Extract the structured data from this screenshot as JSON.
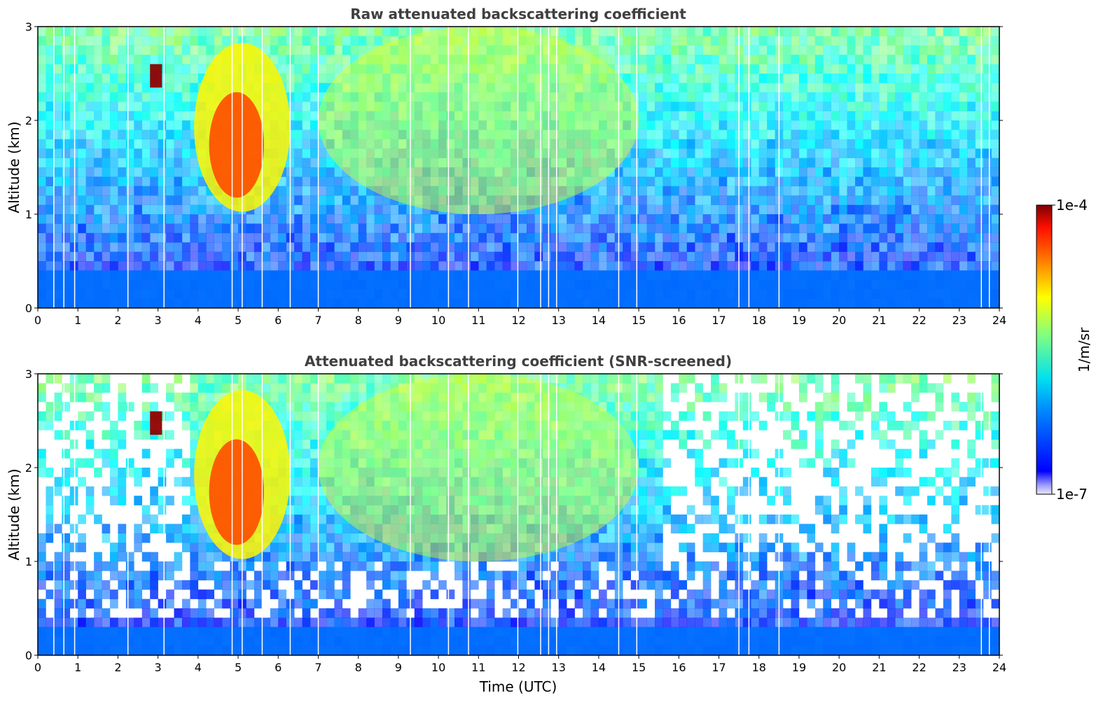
{
  "chart_data": [
    {
      "type": "heatmap",
      "title": "Raw attenuated backscattering coefficient",
      "xlabel": "",
      "ylabel": "Altitude (km)",
      "xlim": [
        0,
        24
      ],
      "ylim": [
        0,
        3
      ],
      "xticks": [
        0,
        1,
        2,
        3,
        4,
        5,
        6,
        7,
        8,
        9,
        10,
        11,
        12,
        13,
        14,
        15,
        16,
        17,
        18,
        19,
        20,
        21,
        22,
        23,
        24
      ],
      "yticks": [
        0,
        1,
        2,
        3
      ],
      "gaps_hours": [
        0.4,
        0.65,
        0.92,
        2.25,
        3.15,
        4.85,
        5.1,
        5.6,
        6.3,
        7.0,
        9.3,
        10.25,
        10.75,
        11.98,
        12.55,
        12.75,
        12.95,
        14.5,
        14.95,
        17.5,
        17.75,
        18.5,
        23.55,
        23.75
      ],
      "features": [
        {
          "desc": "surface layer",
          "t_range": [
            0,
            24
          ],
          "alt_range": [
            0,
            0.4
          ],
          "log10_value": -6.3
        },
        {
          "desc": "cloud band",
          "t_range": [
            3.9,
            6.3
          ],
          "alt_range": [
            1.1,
            2.9
          ],
          "log10_value": -4.6
        },
        {
          "desc": "cloud patch",
          "t_range": [
            2.8,
            3.1
          ],
          "alt_range": [
            2.35,
            2.6
          ],
          "log10_value": -4.05
        },
        {
          "desc": "enhanced layer",
          "t_range": [
            7,
            15
          ],
          "alt_range": [
            1.0,
            3.0
          ],
          "log10_value": -5.2
        }
      ]
    },
    {
      "type": "heatmap",
      "title": "Attenuated backscattering coefficient (SNR-screened)",
      "xlabel": "Time (UTC)",
      "ylabel": "Altitude (km)",
      "xlim": [
        0,
        24
      ],
      "ylim": [
        0,
        3
      ],
      "xticks": [
        0,
        1,
        2,
        3,
        4,
        5,
        6,
        7,
        8,
        9,
        10,
        11,
        12,
        13,
        14,
        15,
        16,
        17,
        18,
        19,
        20,
        21,
        22,
        23,
        24
      ],
      "yticks": [
        0,
        1,
        2,
        3
      ],
      "gaps_hours": [
        0.4,
        0.65,
        0.92,
        2.25,
        3.15,
        4.85,
        5.1,
        5.6,
        6.3,
        7.0,
        9.3,
        10.25,
        10.75,
        11.98,
        12.55,
        12.75,
        12.95,
        14.5,
        14.95,
        17.5,
        17.75,
        18.5,
        23.55,
        23.75
      ],
      "features": [
        {
          "desc": "surface layer",
          "t_range": [
            0,
            24
          ],
          "alt_range": [
            0,
            0.3
          ],
          "log10_value": -6.3
        },
        {
          "desc": "cloud band",
          "t_range": [
            3.9,
            6.3
          ],
          "alt_range": [
            1.1,
            2.9
          ],
          "log10_value": -4.6
        },
        {
          "desc": "cloud patch",
          "t_range": [
            2.8,
            3.1
          ],
          "alt_range": [
            2.35,
            2.6
          ],
          "log10_value": -4.05
        },
        {
          "desc": "enhanced layer",
          "t_range": [
            7,
            15
          ],
          "alt_range": [
            1.0,
            3.0
          ],
          "log10_value": -5.2
        }
      ]
    }
  ],
  "colorbar": {
    "label": "1/m/sr",
    "max_label": "1e-4",
    "min_label": "1e-7",
    "range_log10": [
      -7,
      -4
    ],
    "colormap": "jet"
  },
  "colors": {
    "title": "#404040",
    "background": "#ffffff"
  }
}
